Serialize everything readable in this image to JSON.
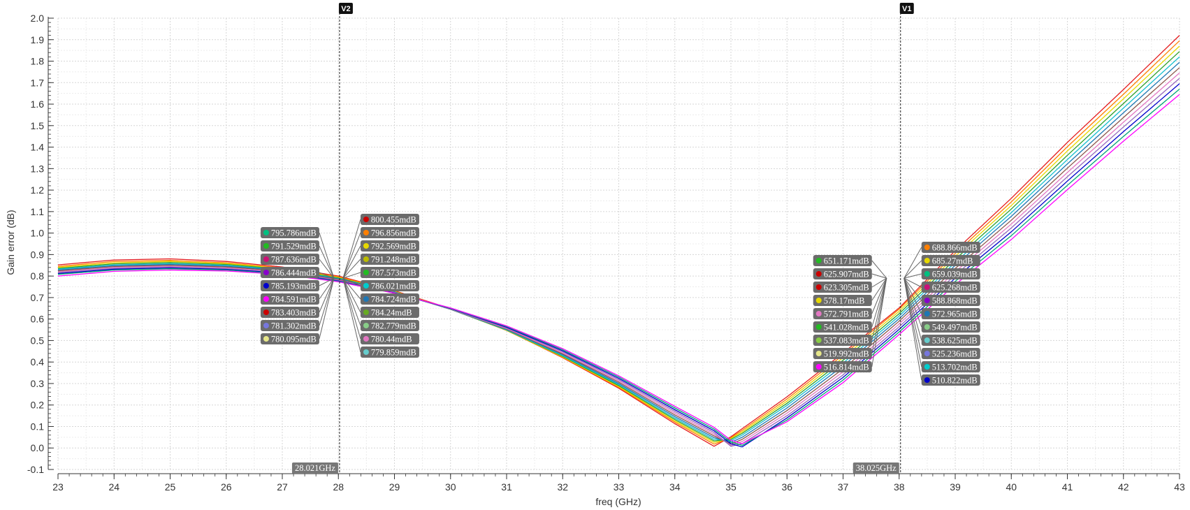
{
  "chart_data": {
    "type": "line",
    "title": "",
    "xlabel": "freq (GHz)",
    "ylabel": "Gain error (dB)",
    "xlim": [
      23,
      43
    ],
    "ylim": [
      -0.1,
      2.0
    ],
    "grid": true,
    "x_ticks": [
      "23",
      "24",
      "25",
      "26",
      "27",
      "28",
      "29",
      "30",
      "31",
      "32",
      "33",
      "34",
      "35",
      "36",
      "37",
      "38",
      "39",
      "40",
      "41",
      "42",
      "43"
    ],
    "y_ticks": [
      "-0.1",
      "0.0",
      "0.1",
      "0.2",
      "0.3",
      "0.4",
      "0.5",
      "0.6",
      "0.7",
      "0.8",
      "0.9",
      "1.0",
      "1.1",
      "1.2",
      "1.3",
      "1.4",
      "1.5",
      "1.6",
      "1.7",
      "1.8",
      "1.9",
      "2.0"
    ],
    "x": [
      23,
      24,
      25,
      26,
      27,
      28,
      29,
      30,
      31,
      32,
      33,
      34,
      34.7,
      35,
      35.2,
      36,
      37,
      38,
      39,
      40,
      41,
      42,
      43
    ],
    "series": [
      {
        "color": "#e41a1c",
        "values": [
          0.852,
          0.875,
          0.88,
          0.868,
          0.842,
          0.8,
          0.732,
          0.648,
          0.548,
          0.42,
          0.278,
          0.113,
          0.008,
          0.052,
          0.09,
          0.238,
          0.442,
          0.652,
          0.918,
          1.162,
          1.422,
          1.668,
          1.92
        ]
      },
      {
        "color": "#ff7f00",
        "values": [
          0.845,
          0.868,
          0.873,
          0.862,
          0.838,
          0.797,
          0.73,
          0.646,
          0.547,
          0.422,
          0.282,
          0.12,
          0.018,
          0.048,
          0.082,
          0.228,
          0.432,
          0.646,
          0.905,
          1.145,
          1.402,
          1.646,
          1.895
        ]
      },
      {
        "color": "#e6d800",
        "values": [
          0.84,
          0.862,
          0.868,
          0.858,
          0.835,
          0.793,
          0.728,
          0.645,
          0.548,
          0.424,
          0.286,
          0.126,
          0.026,
          0.044,
          0.075,
          0.218,
          0.42,
          0.636,
          0.892,
          1.128,
          1.382,
          1.625,
          1.87
        ]
      },
      {
        "color": "#2ca02c",
        "values": [
          0.836,
          0.857,
          0.863,
          0.854,
          0.832,
          0.791,
          0.727,
          0.645,
          0.549,
          0.427,
          0.29,
          0.132,
          0.033,
          0.04,
          0.068,
          0.208,
          0.408,
          0.625,
          0.878,
          1.112,
          1.362,
          1.603,
          1.845
        ]
      },
      {
        "color": "#17becf",
        "values": [
          0.832,
          0.852,
          0.858,
          0.85,
          0.829,
          0.788,
          0.726,
          0.645,
          0.55,
          0.43,
          0.295,
          0.139,
          0.04,
          0.034,
          0.06,
          0.198,
          0.395,
          0.614,
          0.864,
          1.095,
          1.342,
          1.582,
          1.82
        ]
      },
      {
        "color": "#1f77b4",
        "values": [
          0.828,
          0.848,
          0.854,
          0.846,
          0.826,
          0.786,
          0.725,
          0.646,
          0.552,
          0.434,
          0.3,
          0.146,
          0.048,
          0.026,
          0.05,
          0.186,
          0.382,
          0.602,
          0.85,
          1.078,
          1.322,
          1.56,
          1.795
        ]
      },
      {
        "color": "#8c564b",
        "values": [
          0.824,
          0.844,
          0.85,
          0.842,
          0.823,
          0.784,
          0.724,
          0.646,
          0.554,
          0.438,
          0.306,
          0.154,
          0.056,
          0.018,
          0.04,
          0.174,
          0.368,
          0.59,
          0.835,
          1.06,
          1.302,
          1.538,
          1.77
        ]
      },
      {
        "color": "#e377c2",
        "values": [
          0.82,
          0.84,
          0.846,
          0.838,
          0.82,
          0.781,
          0.723,
          0.647,
          0.556,
          0.442,
          0.312,
          0.162,
          0.064,
          0.012,
          0.03,
          0.162,
          0.354,
          0.577,
          0.82,
          1.042,
          1.282,
          1.516,
          1.745
        ]
      },
      {
        "color": "#9467bd",
        "values": [
          0.816,
          0.836,
          0.842,
          0.834,
          0.817,
          0.779,
          0.722,
          0.648,
          0.559,
          0.447,
          0.318,
          0.17,
          0.072,
          0.008,
          0.02,
          0.15,
          0.34,
          0.564,
          0.805,
          1.024,
          1.262,
          1.494,
          1.72
        ]
      },
      {
        "color": "#0000cc",
        "values": [
          0.812,
          0.832,
          0.838,
          0.831,
          0.814,
          0.777,
          0.721,
          0.649,
          0.562,
          0.452,
          0.324,
          0.178,
          0.08,
          0.02,
          0.005,
          0.14,
          0.328,
          0.552,
          0.79,
          1.006,
          1.242,
          1.472,
          1.695
        ]
      },
      {
        "color": "#00a676",
        "values": [
          0.808,
          0.828,
          0.834,
          0.828,
          0.811,
          0.775,
          0.72,
          0.65,
          0.565,
          0.457,
          0.33,
          0.186,
          0.088,
          0.028,
          0.012,
          0.13,
          0.316,
          0.54,
          0.775,
          0.988,
          1.222,
          1.45,
          1.67
        ]
      },
      {
        "color": "#ff00ff",
        "values": [
          0.8,
          0.822,
          0.828,
          0.824,
          0.808,
          0.773,
          0.72,
          0.652,
          0.568,
          0.462,
          0.336,
          0.194,
          0.096,
          0.036,
          0.02,
          0.122,
          0.304,
          0.528,
          0.76,
          0.97,
          1.202,
          1.428,
          1.645
        ]
      }
    ],
    "markers": [
      {
        "name": "V2",
        "x": 28.021,
        "freq_label": "28.021GHz"
      },
      {
        "name": "V1",
        "x": 38.025,
        "freq_label": "38.025GHz"
      }
    ],
    "marker_labels_v2_left": [
      {
        "text": "795.786mdB",
        "color": "#00c080"
      },
      {
        "text": "791.529mdB",
        "color": "#22bb22"
      },
      {
        "text": "787.636mdB",
        "color": "#cc1177"
      },
      {
        "text": "786.444mdB",
        "color": "#8800cc"
      },
      {
        "text": "785.193mdB",
        "color": "#0000cc"
      },
      {
        "text": "784.591mdB",
        "color": "#ff00ff"
      },
      {
        "text": "783.403mdB",
        "color": "#cc0000"
      },
      {
        "text": "781.302mdB",
        "color": "#7777dd"
      },
      {
        "text": "780.095mdB",
        "color": "#e6e68a"
      }
    ],
    "marker_labels_v2_right": [
      {
        "text": "800.455mdB",
        "color": "#cc0000"
      },
      {
        "text": "796.856mdB",
        "color": "#ff7f00"
      },
      {
        "text": "792.569mdB",
        "color": "#e6d800"
      },
      {
        "text": "791.248mdB",
        "color": "#bbbb00"
      },
      {
        "text": "787.573mdB",
        "color": "#22bb22"
      },
      {
        "text": "786.021mdB",
        "color": "#00cccc"
      },
      {
        "text": "784.724mdB",
        "color": "#1f77b4"
      },
      {
        "text": "784.24mdB",
        "color": "#66aa22"
      },
      {
        "text": "782.779mdB",
        "color": "#88cc88"
      },
      {
        "text": "780.44mdB",
        "color": "#e377c2"
      },
      {
        "text": "779.859mdB",
        "color": "#66cccc"
      }
    ],
    "marker_labels_v1_left": [
      {
        "text": "651.171mdB",
        "color": "#22bb22"
      },
      {
        "text": "625.907mdB",
        "color": "#cc0000"
      },
      {
        "text": "623.305mdB",
        "color": "#cc0000"
      },
      {
        "text": "578.17mdB",
        "color": "#e6d800"
      },
      {
        "text": "572.791mdB",
        "color": "#e377c2"
      },
      {
        "text": "541.028mdB",
        "color": "#22bb22"
      },
      {
        "text": "537.083mdB",
        "color": "#88cc44"
      },
      {
        "text": "519.992mdB",
        "color": "#e6e68a"
      },
      {
        "text": "516.814mdB",
        "color": "#ff00ff"
      }
    ],
    "marker_labels_v1_right": [
      {
        "text": "688.866mdB",
        "color": "#ff7f00"
      },
      {
        "text": "685.27mdB",
        "color": "#e6d800"
      },
      {
        "text": "659.039mdB",
        "color": "#00c080"
      },
      {
        "text": "625.268mdB",
        "color": "#cc1177"
      },
      {
        "text": "588.868mdB",
        "color": "#8800cc"
      },
      {
        "text": "572.965mdB",
        "color": "#1f77b4"
      },
      {
        "text": "549.497mdB",
        "color": "#88cc88"
      },
      {
        "text": "538.625mdB",
        "color": "#66cccc"
      },
      {
        "text": "525.236mdB",
        "color": "#7777dd"
      },
      {
        "text": "513.702mdB",
        "color": "#00cccc"
      },
      {
        "text": "510.822mdB",
        "color": "#0000cc"
      }
    ]
  }
}
